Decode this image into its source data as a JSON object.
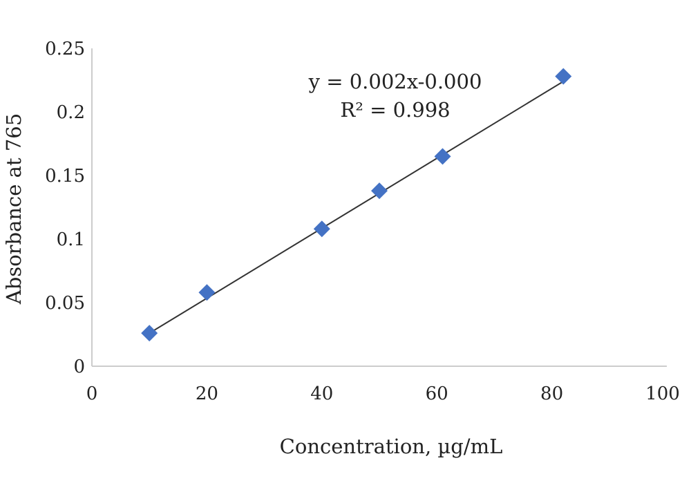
{
  "chart_data": {
    "type": "scatter",
    "title": "",
    "xlabel": "Concentration, µg/mL",
    "ylabel": "Absorbance at 765",
    "xlim": [
      0,
      100
    ],
    "ylim": [
      0,
      0.25
    ],
    "x_ticks": [
      "0",
      "20",
      "40",
      "60",
      "80",
      "100"
    ],
    "y_ticks": [
      "0",
      "0.05",
      "0.1",
      "0.15",
      "0.2",
      "0.25"
    ],
    "grid": false,
    "legend": "none",
    "series": [
      {
        "x": [
          10,
          20,
          40,
          50,
          61,
          82
        ],
        "y": [
          0.026,
          0.058,
          0.108,
          0.138,
          0.165,
          0.228
        ],
        "marker": "diamond",
        "color": "#4472C4"
      }
    ],
    "trendline": {
      "type": "linear",
      "equation": "y = 0.002x-0.000",
      "r2_label": "R² = 0.998",
      "color": "#333333",
      "x_range": [
        10,
        82
      ],
      "y_range": [
        0.026,
        0.224
      ]
    }
  }
}
